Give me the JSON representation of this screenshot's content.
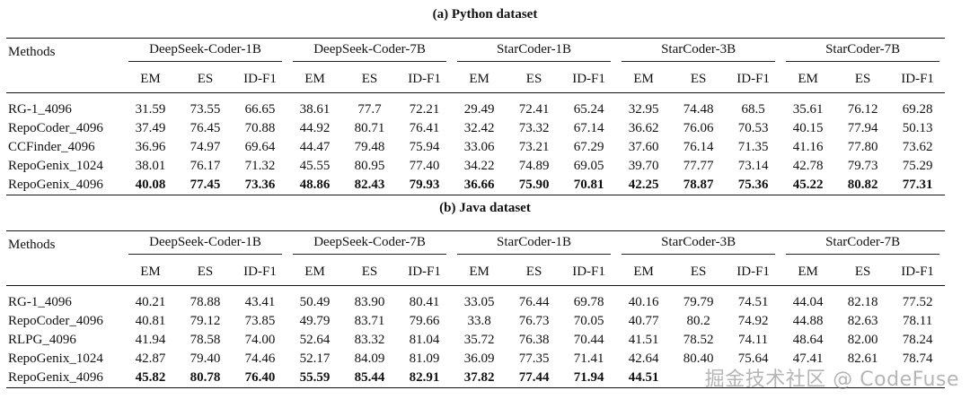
{
  "python": {
    "caption": "(a) Python dataset",
    "methods_header": "Methods",
    "models": [
      "DeepSeek-Coder-1B",
      "DeepSeek-Coder-7B",
      "StarCoder-1B",
      "StarCoder-3B",
      "StarCoder-7B"
    ],
    "metrics": [
      "EM",
      "ES",
      "ID-F1"
    ],
    "rows": [
      {
        "method": "RG-1_4096",
        "values": [
          "31.59",
          "73.55",
          "66.65",
          "38.61",
          "77.7",
          "72.21",
          "29.49",
          "72.41",
          "65.24",
          "32.95",
          "74.48",
          "68.5",
          "35.61",
          "76.12",
          "69.28"
        ]
      },
      {
        "method": "RepoCoder_4096",
        "values": [
          "37.49",
          "76.45",
          "70.88",
          "44.92",
          "80.71",
          "76.41",
          "32.42",
          "73.32",
          "67.14",
          "36.62",
          "76.06",
          "70.53",
          "40.15",
          "77.94",
          "50.13"
        ]
      },
      {
        "method": "CCFinder_4096",
        "values": [
          "36.96",
          "74.97",
          "69.64",
          "44.47",
          "79.48",
          "75.94",
          "33.06",
          "73.21",
          "67.29",
          "37.60",
          "76.14",
          "71.35",
          "41.16",
          "77.80",
          "73.62"
        ]
      },
      {
        "method": "RepoGenix_1024",
        "values": [
          "38.01",
          "76.17",
          "71.32",
          "45.55",
          "80.95",
          "77.40",
          "34.22",
          "74.89",
          "69.05",
          "39.70",
          "77.77",
          "73.14",
          "42.78",
          "79.73",
          "75.29"
        ]
      },
      {
        "method": "RepoGenix_4096",
        "values": [
          "40.08",
          "77.45",
          "73.36",
          "48.86",
          "82.43",
          "79.93",
          "36.66",
          "75.90",
          "70.81",
          "42.25",
          "78.87",
          "75.36",
          "45.22",
          "80.82",
          "77.31"
        ]
      }
    ]
  },
  "java": {
    "caption": "(b) Java dataset",
    "methods_header": "Methods",
    "models": [
      "DeepSeek-Coder-1B",
      "DeepSeek-Coder-7B",
      "StarCoder-1B",
      "StarCoder-3B",
      "StarCoder-7B"
    ],
    "metrics": [
      "EM",
      "ES",
      "ID-F1"
    ],
    "rows": [
      {
        "method": "RG-1_4096",
        "values": [
          "40.21",
          "78.88",
          "43.41",
          "50.49",
          "83.90",
          "80.41",
          "33.05",
          "76.44",
          "69.78",
          "40.16",
          "79.79",
          "74.51",
          "44.04",
          "82.18",
          "77.52"
        ]
      },
      {
        "method": "RepoCoder_4096",
        "values": [
          "40.81",
          "79.12",
          "73.85",
          "49.79",
          "83.71",
          "79.66",
          "33.8",
          "76.73",
          "70.05",
          "40.77",
          "80.2",
          "74.92",
          "44.88",
          "82.63",
          "78.11"
        ]
      },
      {
        "method": "RLPG_4096",
        "values": [
          "41.94",
          "78.58",
          "74.00",
          "52.64",
          "83.32",
          "81.04",
          "35.72",
          "76.38",
          "70.44",
          "41.51",
          "78.52",
          "74.11",
          "48.64",
          "82.00",
          "78.24"
        ]
      },
      {
        "method": "RepoGenix_1024",
        "values": [
          "42.87",
          "79.40",
          "74.46",
          "52.17",
          "84.09",
          "81.09",
          "36.09",
          "77.35",
          "71.41",
          "42.64",
          "80.40",
          "75.64",
          "47.41",
          "82.61",
          "78.74"
        ]
      },
      {
        "method": "RepoGenix_4096",
        "values": [
          "45.82",
          "80.78",
          "76.40",
          "55.59",
          "85.44",
          "82.91",
          "37.82",
          "77.44",
          "71.94",
          "44.51",
          "",
          "",
          "",
          "",
          ""
        ]
      }
    ]
  },
  "watermark": "掘金技术社区 @ CodeFuse"
}
